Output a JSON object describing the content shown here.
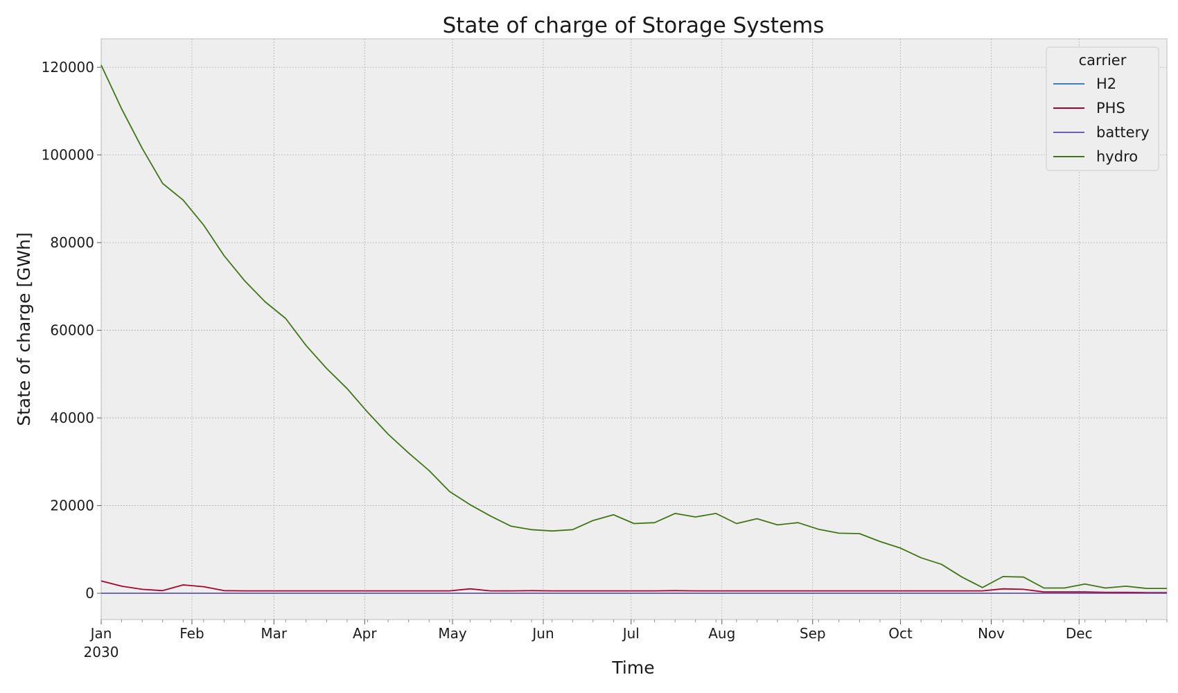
{
  "chart_data": {
    "type": "line",
    "title": "State of charge of Storage Systems",
    "xlabel": "Time",
    "ylabel": "State of charge [GWh]",
    "x_range": [
      "2030-01-01",
      "2030-12-31"
    ],
    "ylim": [
      -6000,
      126500
    ],
    "yticks": [
      0,
      20000,
      40000,
      60000,
      80000,
      100000,
      120000
    ],
    "xticks": [
      {
        "date": "2030-01-01",
        "label": "Jan",
        "sublabel": "2030"
      },
      {
        "date": "2030-02-01",
        "label": "Feb"
      },
      {
        "date": "2030-03-01",
        "label": "Mar"
      },
      {
        "date": "2030-04-01",
        "label": "Apr"
      },
      {
        "date": "2030-05-01",
        "label": "May"
      },
      {
        "date": "2030-06-01",
        "label": "Jun"
      },
      {
        "date": "2030-07-01",
        "label": "Jul"
      },
      {
        "date": "2030-08-01",
        "label": "Aug"
      },
      {
        "date": "2030-09-01",
        "label": "Sep"
      },
      {
        "date": "2030-10-01",
        "label": "Oct"
      },
      {
        "date": "2030-11-01",
        "label": "Nov"
      },
      {
        "date": "2030-12-01",
        "label": "Dec"
      }
    ],
    "grid": true,
    "legend": {
      "title": "carrier",
      "placement": "top-right"
    },
    "x": [
      "2030-01-01",
      "2030-01-08",
      "2030-01-15",
      "2030-01-22",
      "2030-01-29",
      "2030-02-05",
      "2030-02-12",
      "2030-02-19",
      "2030-02-26",
      "2030-03-05",
      "2030-03-12",
      "2030-03-19",
      "2030-03-26",
      "2030-04-02",
      "2030-04-09",
      "2030-04-16",
      "2030-04-23",
      "2030-04-30",
      "2030-05-07",
      "2030-05-14",
      "2030-05-21",
      "2030-05-28",
      "2030-06-04",
      "2030-06-11",
      "2030-06-18",
      "2030-06-25",
      "2030-07-02",
      "2030-07-09",
      "2030-07-16",
      "2030-07-23",
      "2030-07-30",
      "2030-08-06",
      "2030-08-13",
      "2030-08-20",
      "2030-08-27",
      "2030-09-03",
      "2030-09-10",
      "2030-09-17",
      "2030-09-24",
      "2030-10-01",
      "2030-10-08",
      "2030-10-15",
      "2030-10-22",
      "2030-10-29",
      "2030-11-05",
      "2030-11-12",
      "2030-11-19",
      "2030-11-26",
      "2030-12-03",
      "2030-12-10",
      "2030-12-17",
      "2030-12-24",
      "2030-12-31"
    ],
    "series": [
      {
        "name": "H2",
        "color": "#3a7fc0",
        "values": [
          0,
          0,
          0,
          0,
          0,
          0,
          0,
          0,
          0,
          0,
          0,
          0,
          0,
          0,
          0,
          0,
          0,
          0,
          0,
          0,
          0,
          0,
          0,
          0,
          0,
          0,
          0,
          0,
          0,
          0,
          0,
          0,
          0,
          0,
          0,
          0,
          0,
          0,
          0,
          0,
          0,
          0,
          0,
          0,
          0,
          0,
          0,
          0,
          0,
          0,
          0,
          0,
          0
        ]
      },
      {
        "name": "PHS",
        "color": "#a8002a",
        "values": [
          2800,
          1600,
          900,
          600,
          1900,
          1500,
          600,
          550,
          550,
          550,
          550,
          550,
          550,
          550,
          550,
          550,
          550,
          550,
          1000,
          550,
          550,
          600,
          550,
          550,
          550,
          550,
          550,
          550,
          600,
          550,
          550,
          550,
          550,
          550,
          550,
          550,
          550,
          550,
          550,
          550,
          550,
          550,
          550,
          550,
          1000,
          900,
          300,
          300,
          300,
          200,
          200,
          150,
          150
        ]
      },
      {
        "name": "battery",
        "color": "#6b5fb0",
        "values": [
          0,
          0,
          0,
          0,
          0,
          0,
          0,
          0,
          0,
          0,
          0,
          0,
          0,
          0,
          0,
          0,
          0,
          0,
          0,
          0,
          0,
          0,
          0,
          0,
          0,
          0,
          0,
          0,
          0,
          0,
          0,
          0,
          0,
          0,
          0,
          0,
          0,
          0,
          0,
          0,
          0,
          0,
          0,
          0,
          0,
          0,
          0,
          0,
          0,
          0,
          0,
          0,
          0
        ]
      },
      {
        "name": "hydro",
        "color": "#3f7613",
        "values": [
          120500,
          110500,
          101500,
          93500,
          89700,
          84000,
          77000,
          71300,
          66500,
          62700,
          56500,
          51300,
          46700,
          41300,
          36300,
          32000,
          28000,
          23200,
          20200,
          17600,
          15300,
          14500,
          14200,
          14500,
          16600,
          17900,
          15900,
          16100,
          18200,
          17400,
          18200,
          15900,
          17000,
          15600,
          16100,
          14600,
          13700,
          13600,
          11800,
          10300,
          8100,
          6600,
          3700,
          1300,
          3800,
          3700,
          1200,
          1200,
          2100,
          1200,
          1600,
          1100,
          1100
        ]
      }
    ]
  }
}
